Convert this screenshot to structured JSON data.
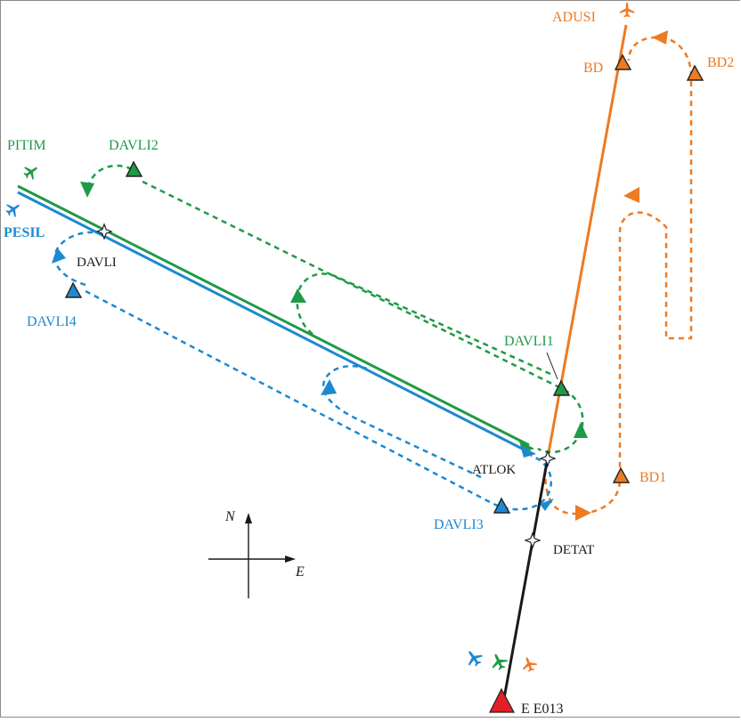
{
  "colors": {
    "orange": "#EE7A22",
    "green": "#1F9A46",
    "blue": "#1E88D0",
    "black": "#1A1A1A",
    "red": "#E21F26"
  },
  "waypoints": {
    "adusi": "ADUSI",
    "bd": "BD",
    "bd2": "BD2",
    "bd1": "BD1",
    "pitim": "PITIM",
    "davli2": "DAVLI2",
    "pesil": "PESIL",
    "davli": "DAVLI",
    "davli4": "DAVLI4",
    "davli1": "DAVLI1",
    "atlok": "ATLOK",
    "davli3": "DAVLI3",
    "detat": "DETAT",
    "runway_threshold": "E E013"
  },
  "compass": {
    "north": "N",
    "east": "E"
  },
  "icons": [
    "aircraft-icon",
    "waypoint-triangle-icon",
    "fix-marker-icon",
    "compass-icon"
  ]
}
